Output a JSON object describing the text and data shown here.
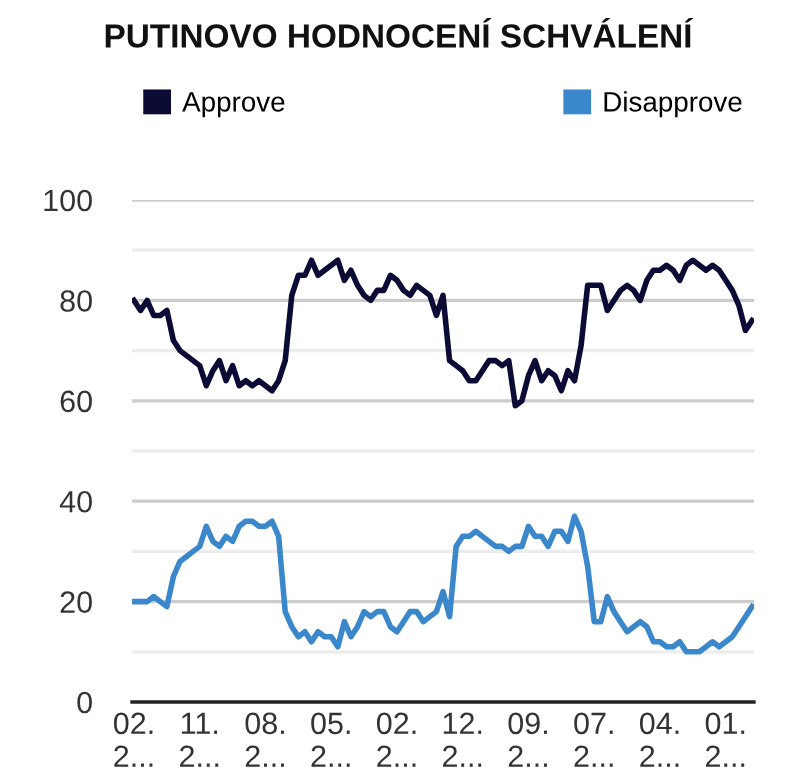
{
  "chart_data": {
    "type": "line",
    "title": "PUTINOVO HODNOCENÍ SCHVÁLENÍ",
    "categories": [
      "02.\n2...",
      null,
      null,
      null,
      null,
      null,
      null,
      null,
      null,
      null,
      "11.\n2...",
      null,
      null,
      null,
      null,
      null,
      null,
      null,
      null,
      null,
      "08.\n2...",
      null,
      null,
      null,
      null,
      null,
      null,
      null,
      null,
      null,
      "05.\n2...",
      null,
      null,
      null,
      null,
      null,
      null,
      null,
      null,
      null,
      "02.\n2...",
      null,
      null,
      null,
      null,
      null,
      null,
      null,
      null,
      null,
      "12.\n2...",
      null,
      null,
      null,
      null,
      null,
      null,
      null,
      null,
      null,
      "09.\n2...",
      null,
      null,
      null,
      null,
      null,
      null,
      null,
      null,
      null,
      "07.\n2...",
      null,
      null,
      null,
      null,
      null,
      null,
      null,
      null,
      null,
      "04.\n2...",
      null,
      null,
      null,
      null,
      null,
      null,
      null,
      null,
      null,
      "01.\n2...",
      null,
      null,
      null,
      null
    ],
    "series": [
      {
        "name": "Approve",
        "color": "#0b0b36",
        "values": [
          80,
          78,
          80,
          77,
          77,
          78,
          72,
          70,
          69,
          68,
          67,
          63,
          66,
          68,
          64,
          67,
          63,
          64,
          63,
          64,
          63,
          62,
          64,
          68,
          81,
          85,
          85,
          88,
          85,
          86,
          87,
          88,
          84,
          86,
          83,
          81,
          80,
          82,
          82,
          85,
          84,
          82,
          81,
          83,
          82,
          81,
          77,
          81,
          68,
          67,
          66,
          64,
          64,
          66,
          68,
          68,
          67,
          68,
          59,
          60,
          65,
          68,
          64,
          66,
          65,
          62,
          66,
          64,
          71,
          83,
          83,
          83,
          78,
          80,
          82,
          83,
          82,
          80,
          84,
          86,
          86,
          87,
          86,
          84,
          87,
          88,
          87,
          86,
          87,
          86,
          84,
          82,
          79,
          74,
          76
        ]
      },
      {
        "name": "Disapprove",
        "color": "#3b87cb",
        "values": [
          20,
          20,
          20,
          21,
          20,
          19,
          25,
          28,
          29,
          30,
          31,
          35,
          32,
          31,
          33,
          32,
          35,
          36,
          36,
          35,
          35,
          36,
          33,
          18,
          15,
          13,
          14,
          12,
          14,
          13,
          13,
          11,
          16,
          13,
          15,
          18,
          17,
          18,
          18,
          15,
          14,
          16,
          18,
          18,
          16,
          17,
          18,
          22,
          17,
          31,
          33,
          33,
          34,
          33,
          32,
          31,
          31,
          30,
          31,
          31,
          35,
          33,
          33,
          31,
          34,
          34,
          32,
          37,
          34,
          27,
          16,
          16,
          21,
          18,
          16,
          14,
          15,
          16,
          15,
          12,
          12,
          11,
          11,
          12,
          10,
          10,
          10,
          11,
          12,
          11,
          12,
          13,
          15,
          17,
          19
        ]
      }
    ],
    "ylim": [
      0,
      100
    ],
    "yticks": [
      0,
      {
        "value": 10,
        "label": null
      },
      20,
      {
        "value": 30,
        "label": null
      },
      40,
      {
        "value": 50,
        "label": null
      },
      60,
      {
        "value": 70,
        "label": null
      },
      80,
      {
        "value": 90,
        "label": null
      },
      100
    ],
    "grid": "y",
    "legend": "top",
    "marker": "none",
    "line_style": "solid"
  }
}
